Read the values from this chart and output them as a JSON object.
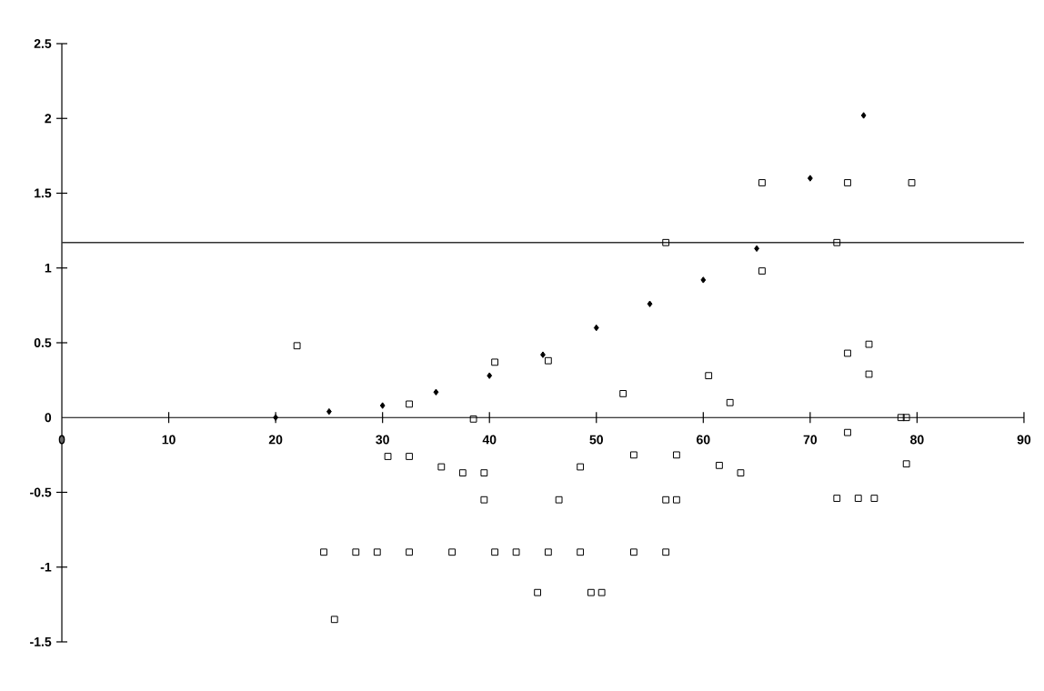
{
  "chart_data": {
    "type": "scatter",
    "xlim": [
      0,
      90
    ],
    "ylim": [
      -1.5,
      2.5
    ],
    "xticks": [
      0,
      10,
      20,
      30,
      40,
      50,
      60,
      70,
      80,
      90
    ],
    "yticks": [
      -1.5,
      -1,
      -0.5,
      0,
      0.5,
      1,
      1.5,
      2,
      2.5
    ],
    "grid": false,
    "ref_lines": [
      {
        "axis": "y",
        "value": 1.17,
        "color": "#333333"
      }
    ],
    "series": [
      {
        "color": "#000000",
        "marker": "square",
        "x": [
          22,
          30.5,
          32.5,
          32.5,
          35.5,
          37.5,
          39.5,
          39.5,
          38.5,
          40.5,
          24.5,
          27.5,
          29.5,
          32.5,
          36.5,
          40.5,
          42.5,
          25.5,
          45.5,
          52.5,
          60.5,
          62.5,
          73.5,
          75.5,
          75.5,
          78.5,
          79,
          73.5,
          53.5,
          57.5,
          48.5,
          61.5,
          63.5,
          79,
          46.5,
          56.5,
          57.5,
          72.5,
          74.5,
          76,
          45.5,
          48.5,
          53.5,
          56.5,
          44.5,
          49.5,
          50.5,
          65.5,
          73.5,
          79.5,
          56.5,
          72.5,
          65.5
        ],
        "values": [
          0.48,
          -0.26,
          -0.26,
          0.09,
          -0.33,
          -0.37,
          -0.37,
          -0.55,
          -0.01,
          0.37,
          -0.9,
          -0.9,
          -0.9,
          -0.9,
          -0.9,
          -0.9,
          -0.9,
          -1.35,
          0.38,
          0.16,
          0.28,
          0.1,
          0.43,
          0.49,
          0.29,
          0,
          0,
          -0.1,
          -0.25,
          -0.25,
          -0.33,
          -0.32,
          -0.37,
          -0.31,
          -0.55,
          -0.55,
          -0.55,
          -0.54,
          -0.54,
          -0.54,
          -0.9,
          -0.9,
          -0.9,
          -0.9,
          -1.17,
          -1.17,
          -1.17,
          1.57,
          1.57,
          1.57,
          1.17,
          1.17,
          0.98
        ]
      },
      {
        "color": "#000000",
        "marker": "diamond",
        "x": [
          20,
          25,
          30,
          35,
          40,
          45,
          50,
          55,
          60,
          65,
          70,
          75
        ],
        "values": [
          0,
          0.04,
          0.08,
          0.17,
          0.28,
          0.42,
          0.6,
          0.76,
          0.92,
          1.13,
          1.6,
          2.02
        ]
      }
    ]
  }
}
